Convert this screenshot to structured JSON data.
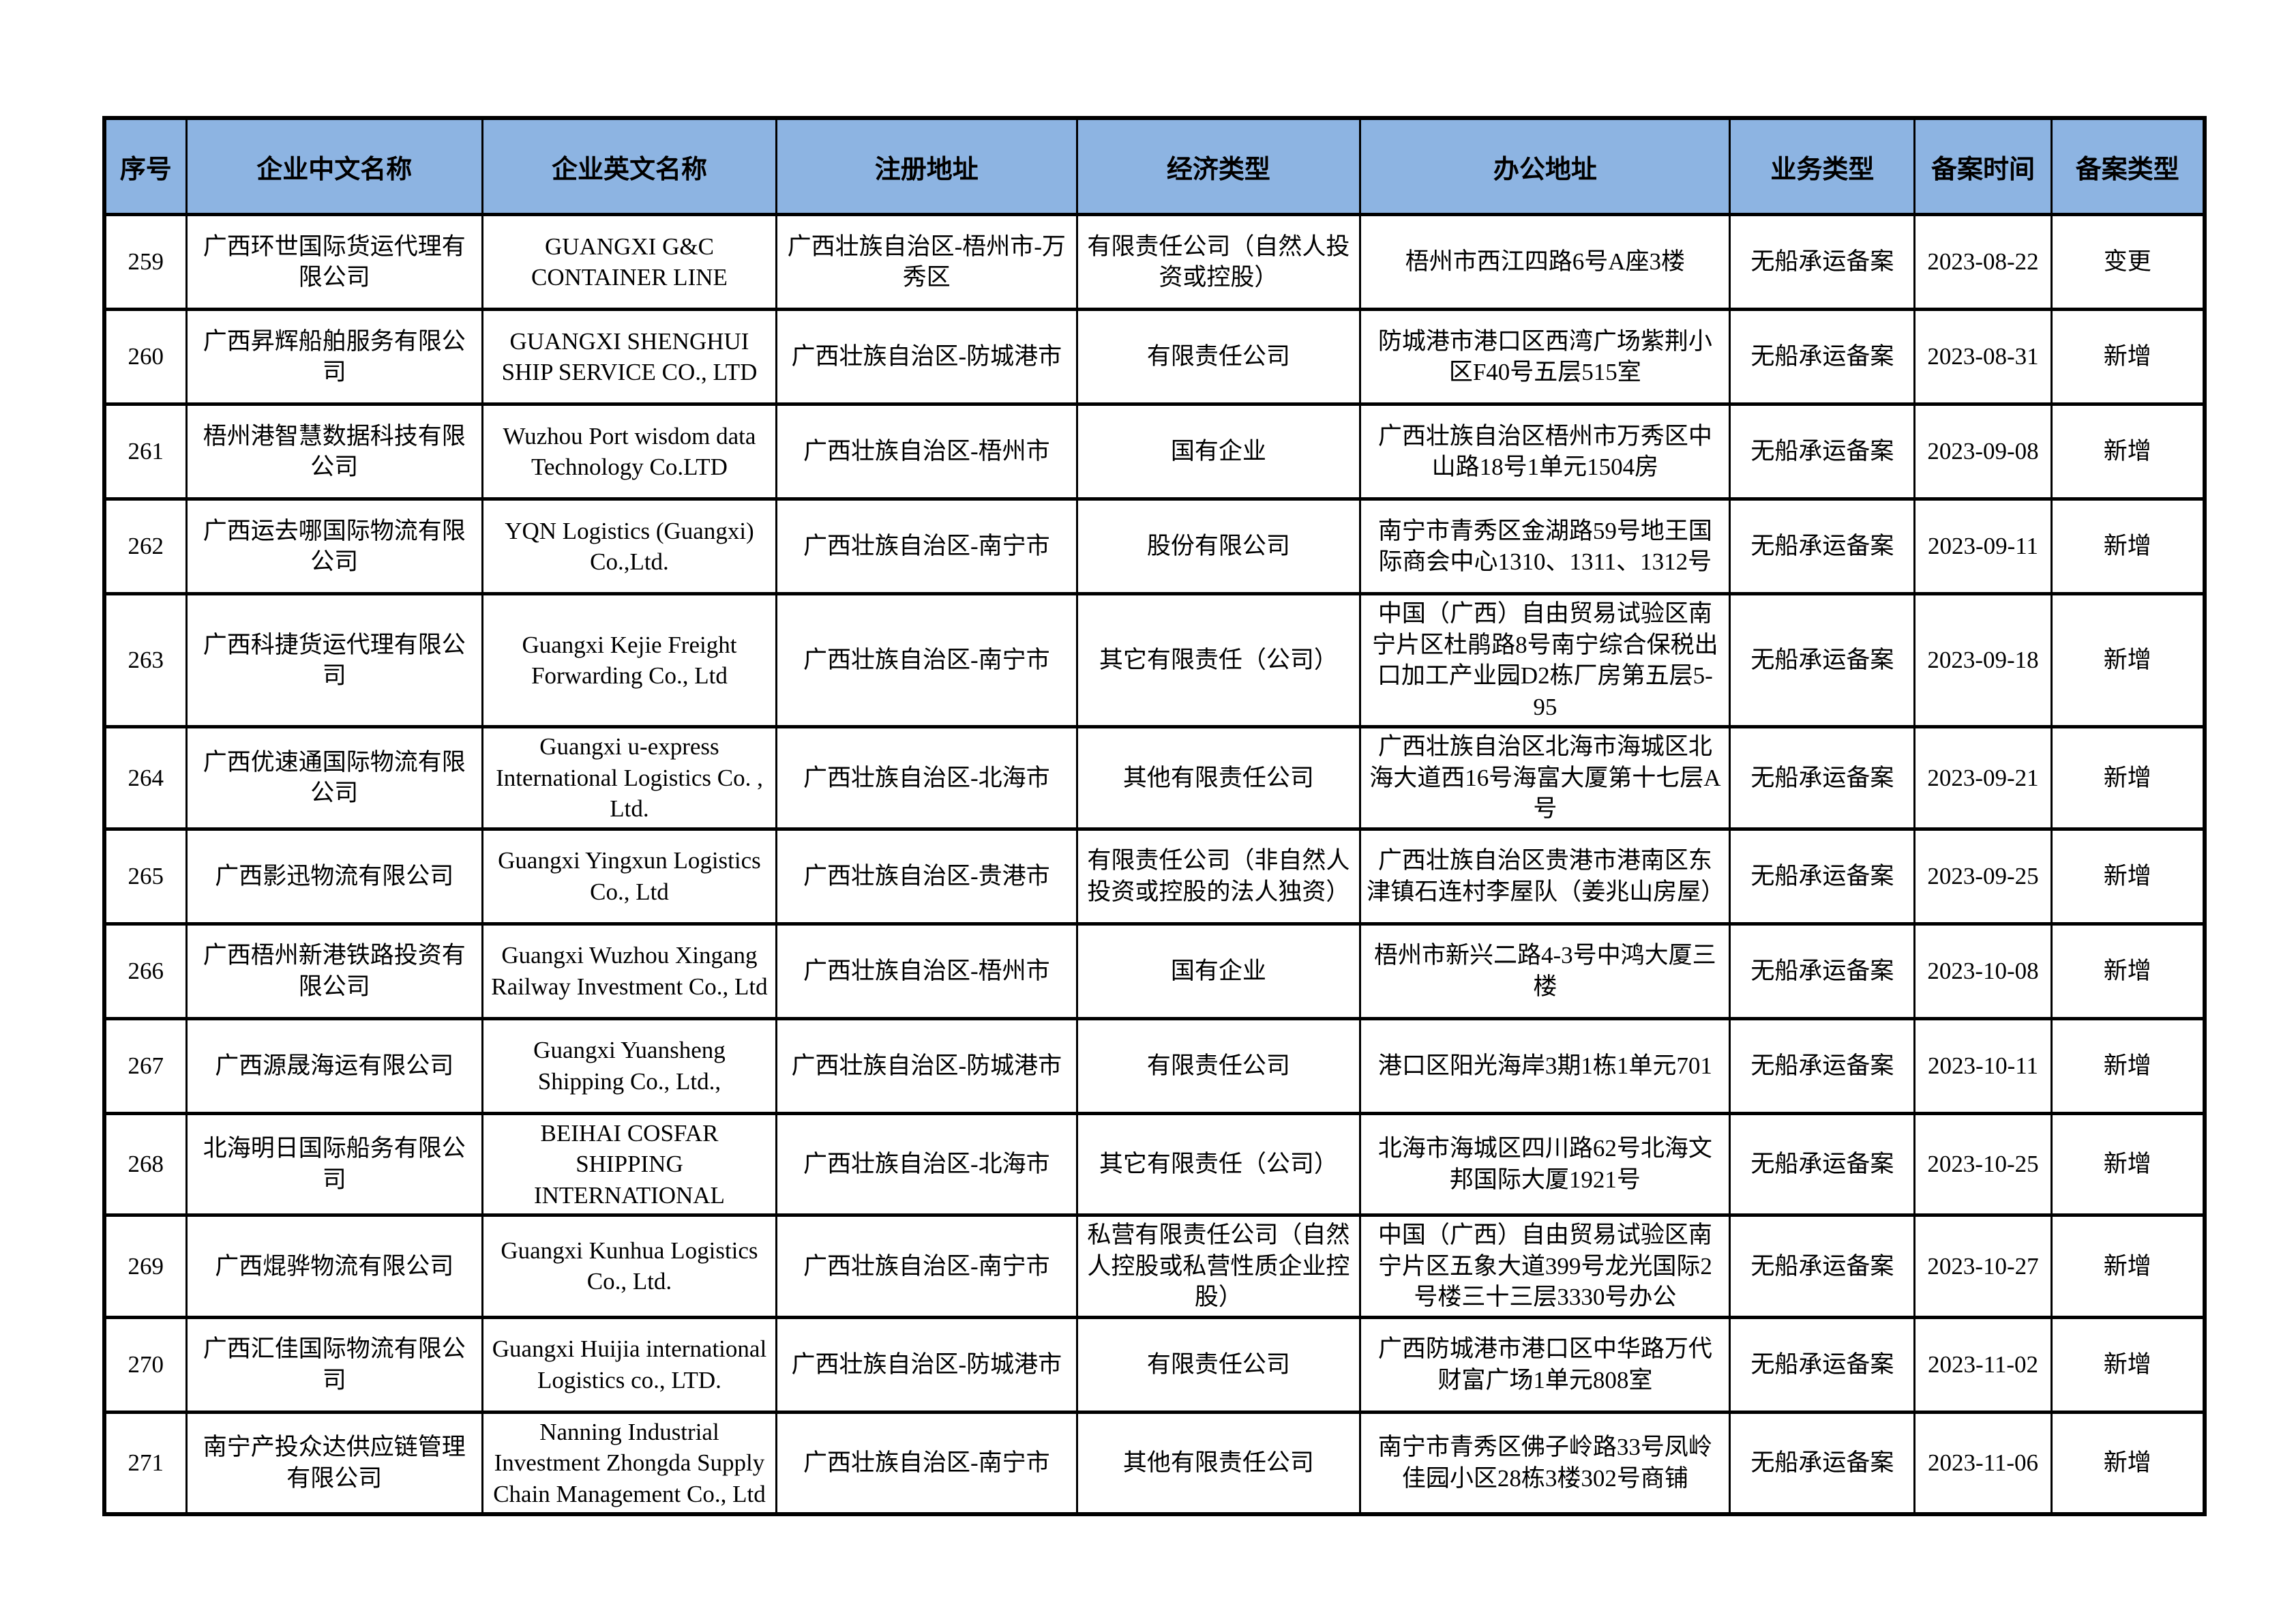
{
  "page": {
    "background": "#ffffff"
  },
  "table": {
    "header_bg": "#8db4e2",
    "border_color": "#000000",
    "columns": [
      "序号",
      "企业中文名称",
      "企业英文名称",
      "注册地址",
      "经济类型",
      "办公地址",
      "业务类型",
      "备案时间",
      "备案类型"
    ],
    "rows": [
      [
        "259",
        "广西环世国际货运代理有限公司",
        "GUANGXI G&C CONTAINER LINE",
        "广西壮族自治区-梧州市-万秀区",
        "有限责任公司（自然人投资或控股）",
        "梧州市西江四路6号A座3楼",
        "无船承运备案",
        "2023-08-22",
        "变更"
      ],
      [
        "260",
        "广西昇辉船舶服务有限公司",
        "GUANGXI SHENGHUI SHIP SERVICE CO., LTD",
        "广西壮族自治区-防城港市",
        "有限责任公司",
        "防城港市港口区西湾广场紫荆小区F40号五层515室",
        "无船承运备案",
        "2023-08-31",
        "新增"
      ],
      [
        "261",
        "梧州港智慧数据科技有限公司",
        "Wuzhou Port wisdom data Technology Co.LTD",
        "广西壮族自治区-梧州市",
        "国有企业",
        "广西壮族自治区梧州市万秀区中山路18号1单元1504房",
        "无船承运备案",
        "2023-09-08",
        "新增"
      ],
      [
        "262",
        "广西运去哪国际物流有限公司",
        "YQN Logistics (Guangxi) Co.,Ltd.",
        "广西壮族自治区-南宁市",
        "股份有限公司",
        "南宁市青秀区金湖路59号地王国际商会中心1310、1311、1312号",
        "无船承运备案",
        "2023-09-11",
        "新增"
      ],
      [
        "263",
        "广西科捷货运代理有限公司",
        "Guangxi Kejie Freight Forwarding Co., Ltd",
        "广西壮族自治区-南宁市",
        "其它有限责任（公司）",
        "中国（广西）自由贸易试验区南宁片区杜鹃路8号南宁综合保税出口加工产业园D2栋厂房第五层5-95",
        "无船承运备案",
        "2023-09-18",
        "新增"
      ],
      [
        "264",
        "广西优速通国际物流有限公司",
        "Guangxi u-express International Logistics Co. , Ltd.",
        "广西壮族自治区-北海市",
        "其他有限责任公司",
        "广西壮族自治区北海市海城区北海大道西16号海富大厦第十七层A号",
        "无船承运备案",
        "2023-09-21",
        "新增"
      ],
      [
        "265",
        "广西影迅物流有限公司",
        "Guangxi Yingxun Logistics Co., Ltd",
        "广西壮族自治区-贵港市",
        "有限责任公司（非自然人投资或控股的法人独资）",
        "广西壮族自治区贵港市港南区东津镇石连村李屋队（姜兆山房屋）",
        "无船承运备案",
        "2023-09-25",
        "新增"
      ],
      [
        "266",
        "广西梧州新港铁路投资有限公司",
        "Guangxi Wuzhou Xingang Railway Investment Co., Ltd",
        "广西壮族自治区-梧州市",
        "国有企业",
        "梧州市新兴二路4-3号中鸿大厦三楼",
        "无船承运备案",
        "2023-10-08",
        "新增"
      ],
      [
        "267",
        "广西源晟海运有限公司",
        "Guangxi Yuansheng Shipping Co., Ltd.,",
        "广西壮族自治区-防城港市",
        "有限责任公司",
        "港口区阳光海岸3期1栋1单元701",
        "无船承运备案",
        "2023-10-11",
        "新增"
      ],
      [
        "268",
        "北海明日国际船务有限公司",
        "BEIHAI COSFAR SHIPPING INTERNATIONAL",
        "广西壮族自治区-北海市",
        "其它有限责任（公司）",
        "北海市海城区四川路62号北海文邦国际大厦1921号",
        "无船承运备案",
        "2023-10-25",
        "新增"
      ],
      [
        "269",
        "广西焜骅物流有限公司",
        "Guangxi Kunhua Logistics Co., Ltd.",
        "广西壮族自治区-南宁市",
        "私营有限责任公司（自然人控股或私营性质企业控股）",
        "中国（广西）自由贸易试验区南宁片区五象大道399号龙光国际2号楼三十三层3330号办公",
        "无船承运备案",
        "2023-10-27",
        "新增"
      ],
      [
        "270",
        "广西汇佳国际物流有限公司",
        "Guangxi Huijia international Logistics co., LTD.",
        "广西壮族自治区-防城港市",
        "有限责任公司",
        "广西防城港市港口区中华路万代财富广场1单元808室",
        "无船承运备案",
        "2023-11-02",
        "新增"
      ],
      [
        "271",
        "南宁产投众达供应链管理有限公司",
        "Nanning Industrial Investment Zhongda Supply Chain Management Co., Ltd",
        "广西壮族自治区-南宁市",
        "其他有限责任公司",
        "南宁市青秀区佛子岭路33号凤岭佳园小区28栋3楼302号商铺",
        "无船承运备案",
        "2023-11-06",
        "新增"
      ]
    ]
  }
}
